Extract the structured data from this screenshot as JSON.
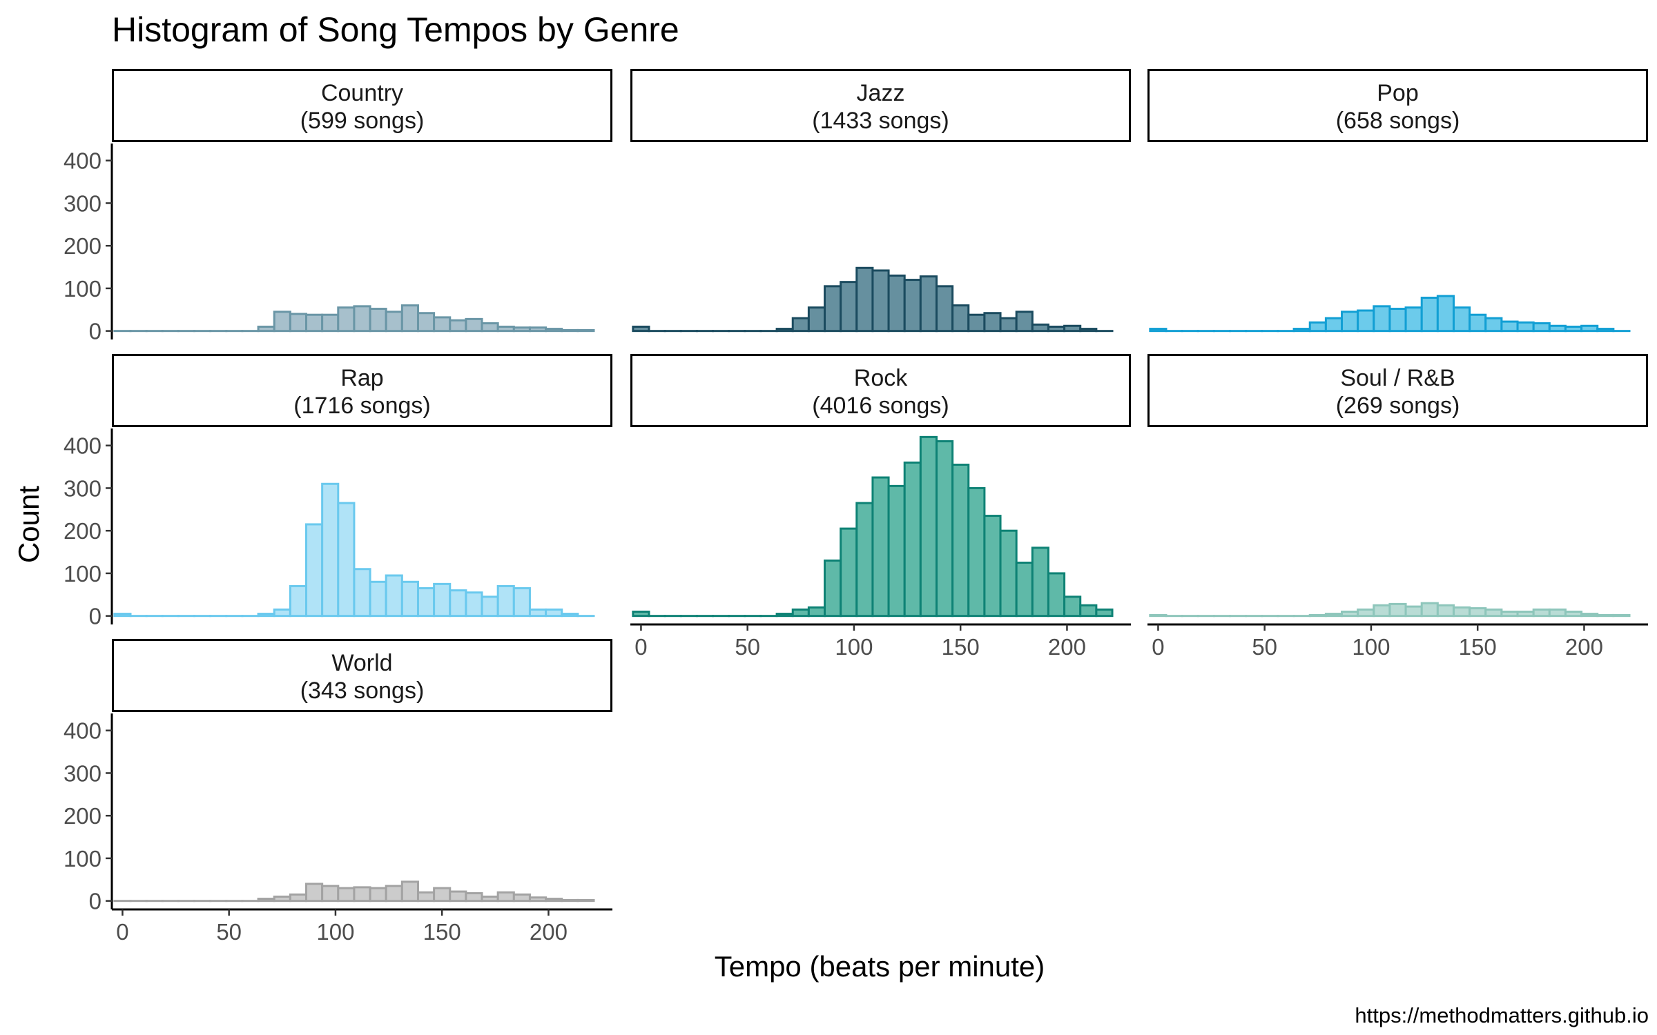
{
  "chart_data": {
    "type": "bar",
    "title": "Histogram of Song Tempos by Genre",
    "xlabel": "Tempo (beats per minute)",
    "ylabel": "Count",
    "caption": "https://methodmatters.github.io",
    "xlim": [
      -5,
      230
    ],
    "ylim": [
      -20,
      440
    ],
    "x_ticks": [
      0,
      50,
      100,
      150,
      200
    ],
    "y_ticks": [
      0,
      100,
      200,
      300,
      400
    ],
    "bin_width": 7.5,
    "bin_centers": [
      0,
      7.5,
      15,
      22.5,
      30,
      37.5,
      45,
      52.5,
      60,
      67.5,
      75,
      82.5,
      90,
      97.5,
      105,
      112.5,
      120,
      127.5,
      135,
      142.5,
      150,
      157.5,
      165,
      172.5,
      180,
      187.5,
      195,
      202.5,
      210,
      217.5
    ],
    "grid": false,
    "facets": [
      {
        "genre": "Country",
        "strip_line1": "Country",
        "strip_line2": "(599 songs)",
        "fill": "#a7c0cc",
        "stroke": "#6a96a6",
        "values": [
          0,
          0,
          0,
          0,
          0,
          0,
          0,
          0,
          0,
          10,
          45,
          40,
          38,
          38,
          55,
          58,
          52,
          45,
          60,
          42,
          32,
          25,
          28,
          18,
          10,
          8,
          8,
          5,
          2,
          2
        ]
      },
      {
        "genre": "Jazz",
        "strip_line1": "Jazz",
        "strip_line2": "(1433 songs)",
        "fill": "#66909f",
        "stroke": "#1b4b5f",
        "values": [
          10,
          0,
          0,
          0,
          0,
          0,
          0,
          0,
          0,
          5,
          30,
          55,
          105,
          115,
          148,
          142,
          130,
          120,
          128,
          105,
          60,
          38,
          42,
          30,
          45,
          15,
          10,
          12,
          5,
          0
        ]
      },
      {
        "genre": "Pop",
        "strip_line1": "Pop",
        "strip_line2": "(658 songs)",
        "fill": "#6ccbeb",
        "stroke": "#129fd4",
        "values": [
          5,
          0,
          0,
          0,
          0,
          0,
          0,
          0,
          0,
          5,
          20,
          30,
          45,
          48,
          58,
          52,
          55,
          78,
          82,
          55,
          38,
          30,
          22,
          20,
          18,
          12,
          10,
          12,
          5,
          0
        ]
      },
      {
        "genre": "Rap",
        "strip_line1": "Rap",
        "strip_line2": "(1716 songs)",
        "fill": "#b0e3f7",
        "stroke": "#6ac9ee",
        "values": [
          5,
          0,
          0,
          0,
          0,
          0,
          0,
          0,
          0,
          5,
          15,
          70,
          215,
          310,
          265,
          110,
          80,
          95,
          80,
          65,
          75,
          60,
          55,
          45,
          70,
          65,
          15,
          15,
          5,
          0
        ]
      },
      {
        "genre": "Rock",
        "strip_line1": "Rock",
        "strip_line2": "(4016 songs)",
        "fill": "#5fb9a8",
        "stroke": "#0e8275",
        "values": [
          10,
          0,
          0,
          0,
          0,
          0,
          0,
          0,
          0,
          5,
          15,
          20,
          130,
          205,
          265,
          325,
          305,
          360,
          420,
          410,
          355,
          300,
          235,
          200,
          125,
          160,
          100,
          45,
          25,
          15
        ]
      },
      {
        "genre": "Soul / R&B",
        "strip_line1": "Soul / R&B",
        "strip_line2": "(269 songs)",
        "fill": "#b9dcd5",
        "stroke": "#8ec6bb",
        "values": [
          2,
          0,
          0,
          0,
          0,
          0,
          0,
          0,
          0,
          0,
          2,
          5,
          10,
          15,
          25,
          28,
          22,
          30,
          25,
          20,
          18,
          15,
          10,
          10,
          15,
          15,
          10,
          5,
          2,
          2
        ]
      },
      {
        "genre": "World",
        "strip_line1": "World",
        "strip_line2": "(343 songs)",
        "fill": "#cccccc",
        "stroke": "#a3a3a3",
        "values": [
          0,
          0,
          0,
          0,
          0,
          0,
          0,
          0,
          0,
          5,
          10,
          15,
          40,
          35,
          30,
          32,
          30,
          35,
          45,
          20,
          30,
          22,
          18,
          10,
          20,
          15,
          8,
          5,
          2,
          2
        ]
      }
    ]
  }
}
